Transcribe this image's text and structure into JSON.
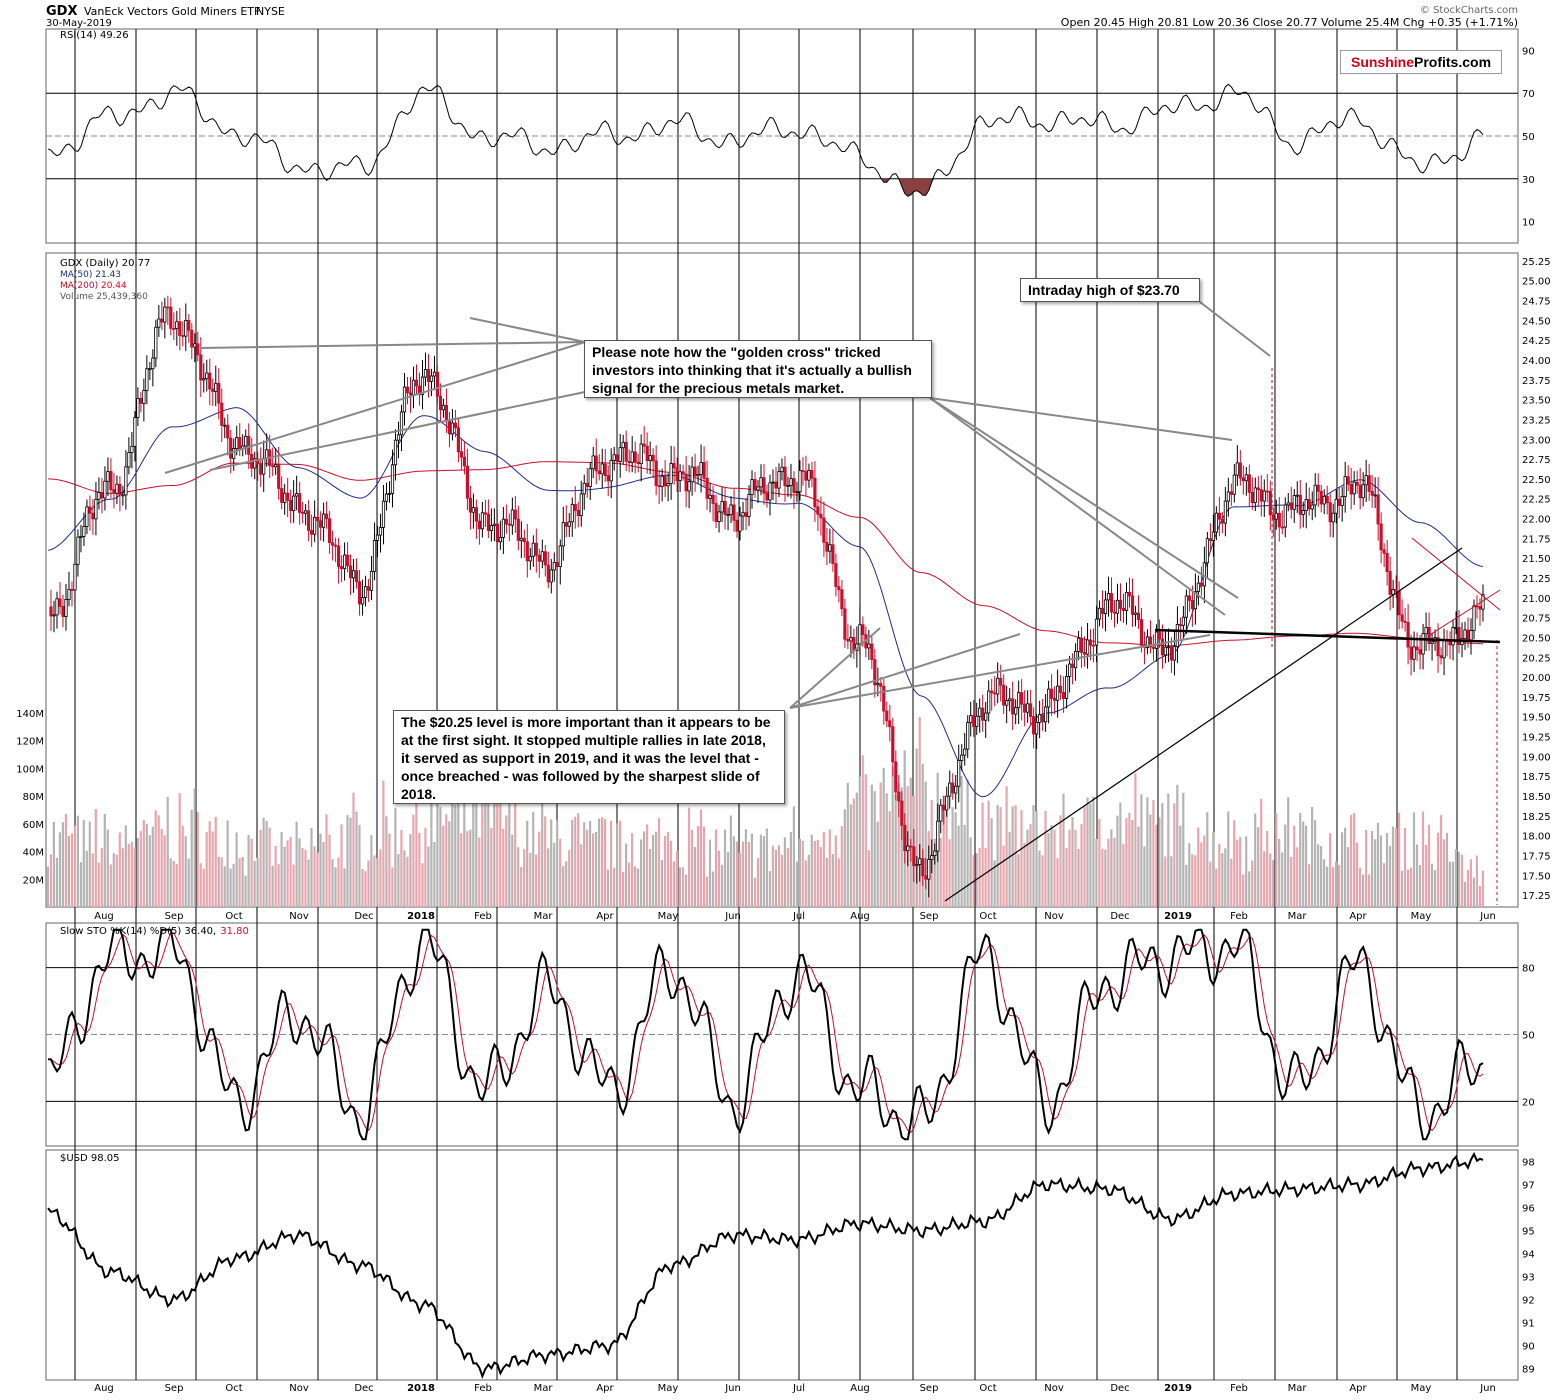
{
  "header": {
    "symbol": "GDX",
    "name": "VanEck Vectors Gold Miners ETF",
    "exchange": "NYSE",
    "date": "30-May-2019",
    "ohlc": "Open 20.45  High 20.81  Low 20.36  Close 20.77  Volume 25.4M  Chg +0.35 (+1.71%)",
    "watermark": "© StockCharts.com",
    "brand_part1": "Sunshine",
    "brand_part2": "Profits.com"
  },
  "colors": {
    "up": "#000000",
    "down": "#c8102e",
    "ma50": "#1f2c8f",
    "ma200": "#c8102e",
    "vol_up": "#b4b4b4",
    "vol_down": "#e8a5ad",
    "rsi_fill": "#8a4040"
  },
  "legends": {
    "rsi": "RSI(14) 49.26",
    "price": "GDX (Daily) 20.77",
    "ma50": "MA(50) 21.43",
    "ma200": "MA(200) 20.44",
    "volume": "Volume 25,439,360",
    "sto_black": "Slow STO %K(14) %D(5) 36.40,",
    "sto_red": "31.80",
    "usd": "$USD 98.05"
  },
  "annotations": {
    "intraday_high": "Intraday high of $23.70",
    "golden_cross": "Please note how the \"golden cross\" tricked investors into thinking that it's actually a bullish signal for the precious metals market.",
    "level_2025": "The $20.25 level is more important than it appears to be at the first sight. It stopped multiple rallies in late 2018, it served as support in 2019, and it was the level that - once breached - was followed by the sharpest slide of 2018."
  },
  "chart_data": [
    {
      "type": "line",
      "panel": "rsi",
      "title": "RSI(14) 49.26",
      "yticks": [
        10,
        30,
        50,
        70,
        90
      ],
      "ylim": [
        0,
        100
      ],
      "x": [
        "2017-07",
        "2017-08",
        "2017-09",
        "2017-10",
        "2017-11",
        "2017-12",
        "2018-01",
        "2018-02",
        "2018-03",
        "2018-04",
        "2018-05",
        "2018-06",
        "2018-07",
        "2018-08",
        "2018-09",
        "2018-10",
        "2018-11",
        "2018-12",
        "2019-01",
        "2019-02",
        "2019-03",
        "2019-04",
        "2019-05",
        "2019-05-30"
      ],
      "series": [
        {
          "name": "RSI(14)",
          "values": [
            42,
            58,
            70,
            52,
            36,
            34,
            70,
            50,
            45,
            50,
            55,
            48,
            54,
            40,
            22,
            56,
            58,
            55,
            62,
            70,
            48,
            58,
            35,
            49
          ]
        }
      ],
      "reference_lines": [
        30,
        50,
        70
      ]
    },
    {
      "type": "candlestick",
      "panel": "price",
      "title": "GDX (Daily) 20.77",
      "yticks": [
        17.25,
        17.5,
        17.75,
        18.0,
        18.25,
        18.5,
        18.75,
        19.0,
        19.25,
        19.5,
        19.75,
        20.0,
        20.25,
        20.5,
        20.75,
        21.0,
        21.25,
        21.5,
        21.75,
        22.0,
        22.25,
        22.5,
        22.75,
        23.0,
        23.25,
        23.5,
        23.75,
        24.0,
        24.25,
        24.5,
        24.75,
        25.0,
        25.25
      ],
      "ylim": [
        17.1,
        25.35
      ],
      "xticks": [
        "Aug",
        "Sep",
        "Oct",
        "Nov",
        "Dec",
        "2018",
        "Feb",
        "Mar",
        "Apr",
        "May",
        "Jun",
        "Jul",
        "Aug",
        "Sep",
        "Oct",
        "Nov",
        "Dec",
        "2019",
        "Feb",
        "Mar",
        "Apr",
        "May",
        "Jun"
      ],
      "x": [
        "2017-07",
        "2017-08",
        "2017-09",
        "2017-10",
        "2017-11",
        "2017-12",
        "2018-01",
        "2018-02",
        "2018-03",
        "2018-04",
        "2018-05",
        "2018-06",
        "2018-07",
        "2018-08",
        "2018-09",
        "2018-10",
        "2018-11",
        "2018-12",
        "2019-01",
        "2019-02",
        "2019-03",
        "2019-04",
        "2019-05",
        "2019-05-30"
      ],
      "series": [
        {
          "name": "GDX",
          "values": [
            20.8,
            22.4,
            24.6,
            23.0,
            22.2,
            21.2,
            23.9,
            22.0,
            21.5,
            22.8,
            22.6,
            22.1,
            22.6,
            20.5,
            17.6,
            19.7,
            19.6,
            20.9,
            20.4,
            22.4,
            22.1,
            22.4,
            20.3,
            20.77
          ]
        },
        {
          "name": "MA(50)",
          "values": [
            21.6,
            22.2,
            23.2,
            23.4,
            22.6,
            22.3,
            23.3,
            22.8,
            22.4,
            22.4,
            22.5,
            22.3,
            22.2,
            21.6,
            19.8,
            18.5,
            19.5,
            19.9,
            20.3,
            22.1,
            22.2,
            22.5,
            21.9,
            21.43
          ]
        },
        {
          "name": "MA(200)",
          "values": [
            22.5,
            22.3,
            22.4,
            22.7,
            22.7,
            22.5,
            22.6,
            22.6,
            22.7,
            22.7,
            22.6,
            22.4,
            22.3,
            22.0,
            21.3,
            20.9,
            20.6,
            20.45,
            20.4,
            20.45,
            20.5,
            20.55,
            20.5,
            20.44
          ]
        }
      ]
    },
    {
      "type": "bar",
      "panel": "volume",
      "title": "Volume 25,439,360",
      "yticks": [
        "20M",
        "40M",
        "60M",
        "80M",
        "100M",
        "120M",
        "140M"
      ],
      "ylim": [
        0,
        140
      ],
      "x": [
        "2017-07",
        "2017-08",
        "2017-09",
        "2017-10",
        "2017-11",
        "2017-12",
        "2018-01",
        "2018-02",
        "2018-03",
        "2018-04",
        "2018-05",
        "2018-06",
        "2018-07",
        "2018-08",
        "2018-09",
        "2018-10",
        "2018-11",
        "2018-12",
        "2019-01",
        "2019-02",
        "2019-03",
        "2019-04",
        "2019-05",
        "2019-05-30"
      ],
      "values": [
        50,
        45,
        55,
        48,
        40,
        50,
        60,
        65,
        50,
        45,
        48,
        40,
        45,
        70,
        85,
        60,
        55,
        65,
        60,
        50,
        55,
        45,
        50,
        25.4
      ]
    },
    {
      "type": "line",
      "panel": "stochastic",
      "title": "Slow STO %K(14) %D(5) 36.40, 31.80",
      "yticks": [
        20,
        50,
        80
      ],
      "ylim": [
        0,
        100
      ],
      "x": [
        "2017-07",
        "2017-08",
        "2017-09",
        "2017-10",
        "2017-11",
        "2017-12",
        "2018-01",
        "2018-02",
        "2018-03",
        "2018-04",
        "2018-05",
        "2018-06",
        "2018-07",
        "2018-08",
        "2018-09",
        "2018-10",
        "2018-11",
        "2018-12",
        "2019-01",
        "2019-02",
        "2019-03",
        "2019-04",
        "2019-05",
        "2019-05-30"
      ],
      "series": [
        {
          "name": "%K(14)",
          "values": [
            30,
            85,
            88,
            20,
            60,
            15,
            92,
            25,
            70,
            25,
            80,
            20,
            78,
            25,
            10,
            85,
            20,
            75,
            85,
            90,
            25,
            80,
            15,
            36.4
          ]
        },
        {
          "name": "%D(5)",
          "values": [
            35,
            80,
            82,
            28,
            55,
            22,
            88,
            30,
            65,
            30,
            75,
            25,
            72,
            30,
            15,
            80,
            25,
            70,
            80,
            85,
            30,
            75,
            20,
            31.8
          ]
        }
      ],
      "reference_lines": [
        20,
        50,
        80
      ]
    },
    {
      "type": "line",
      "panel": "usd",
      "title": "$USD 98.05",
      "yticks": [
        89,
        90,
        91,
        92,
        93,
        94,
        95,
        96,
        97,
        98
      ],
      "ylim": [
        88.5,
        98.5
      ],
      "xticks": [
        "Aug",
        "Sep",
        "Oct",
        "Nov",
        "Dec",
        "2018",
        "Feb",
        "Mar",
        "Apr",
        "May",
        "Jun",
        "Jul",
        "Aug",
        "Sep",
        "Oct",
        "Nov",
        "Dec",
        "2019",
        "Feb",
        "Mar",
        "Apr",
        "May",
        "Jun"
      ],
      "x": [
        "2017-07",
        "2017-08",
        "2017-09",
        "2017-10",
        "2017-11",
        "2017-12",
        "2018-01",
        "2018-02",
        "2018-03",
        "2018-04",
        "2018-05",
        "2018-06",
        "2018-07",
        "2018-08",
        "2018-09",
        "2018-10",
        "2018-11",
        "2018-12",
        "2019-01",
        "2019-02",
        "2019-03",
        "2019-04",
        "2019-05",
        "2019-05-30"
      ],
      "series": [
        {
          "name": "$USD",
          "values": [
            95.8,
            93.2,
            92.0,
            93.8,
            94.8,
            93.5,
            91.8,
            89.0,
            89.6,
            90.0,
            93.5,
            94.8,
            94.6,
            95.3,
            95.0,
            95.4,
            97.0,
            96.8,
            95.5,
            96.6,
            96.8,
            97.0,
            97.7,
            98.05
          ]
        }
      ]
    }
  ]
}
